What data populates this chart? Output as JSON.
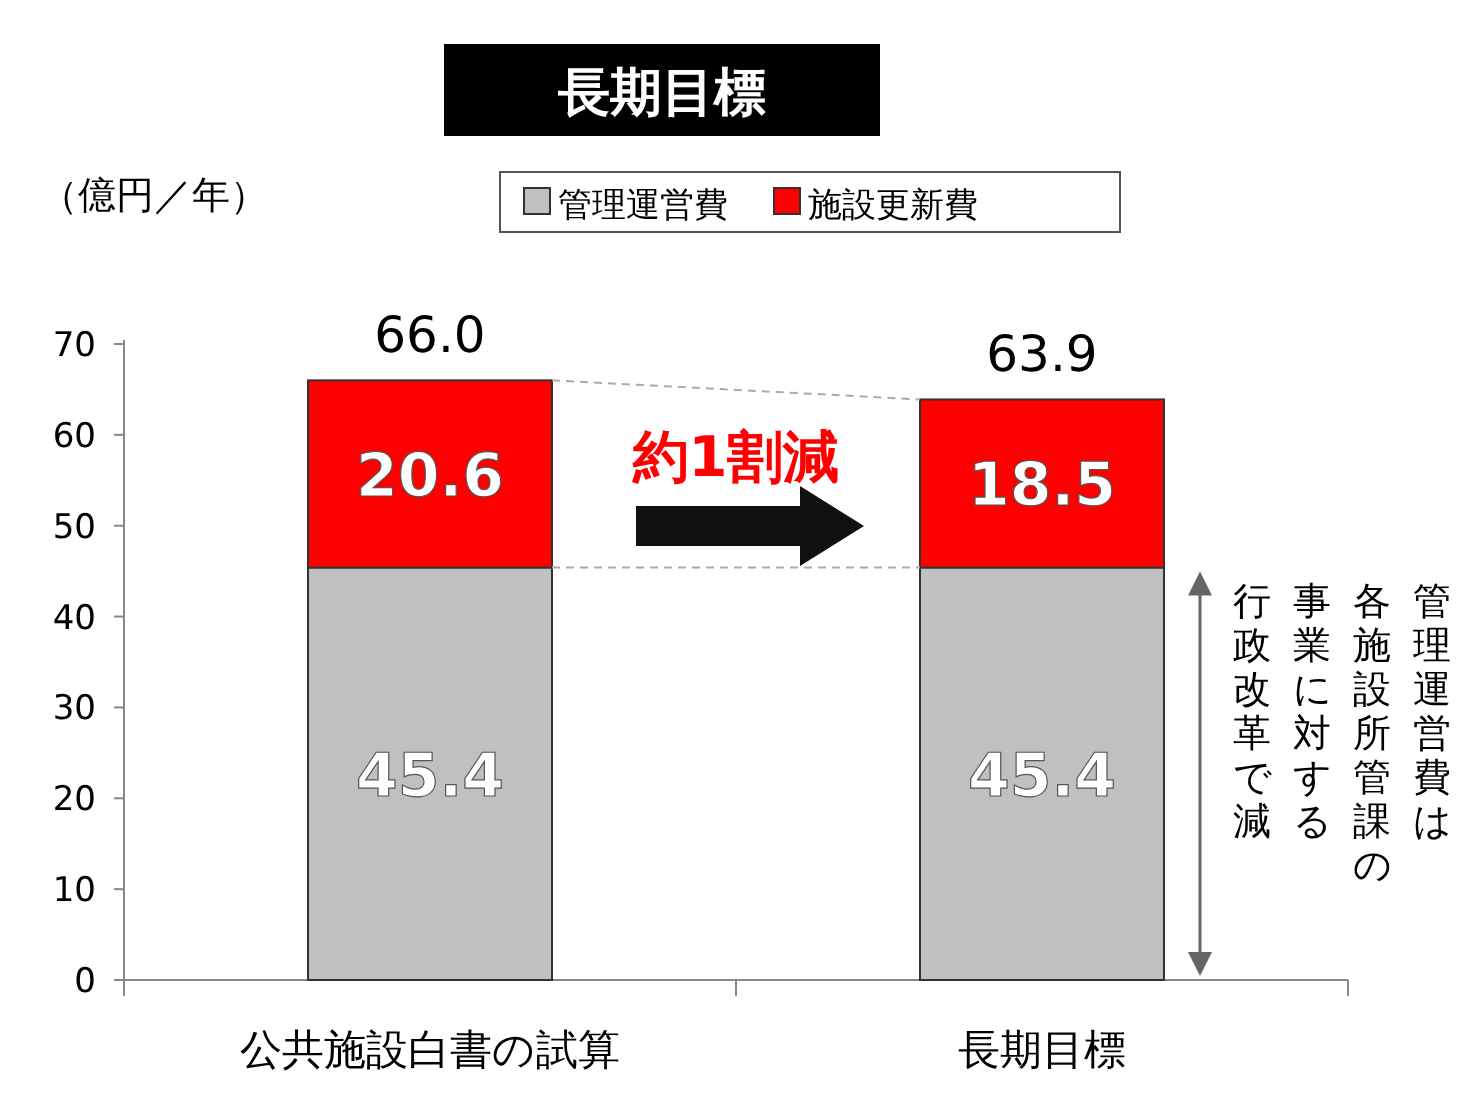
{
  "chart_data": {
    "type": "bar",
    "title": "長期目標",
    "ylabel": "（億円／年）",
    "categories": [
      "公共施設白書の試算",
      "長期目標"
    ],
    "series": [
      {
        "name": "管理運営費",
        "color": "#c0c0c0",
        "values": [
          45.4,
          45.4
        ]
      },
      {
        "name": "施設更新費",
        "color": "#ff0000",
        "values": [
          20.6,
          18.5
        ]
      }
    ],
    "stacked": true,
    "data_labels": true,
    "totals": [
      "66.0",
      "63.9"
    ],
    "ylim": [
      0,
      70
    ],
    "yticks": [
      0,
      10,
      20,
      30,
      40,
      50,
      60,
      70
    ],
    "grid": false,
    "legend": "top",
    "annotations": [
      "約1割減",
      "管理運営費は",
      "各施設所管課の",
      "事業に対する",
      "行政改革で減"
    ]
  }
}
